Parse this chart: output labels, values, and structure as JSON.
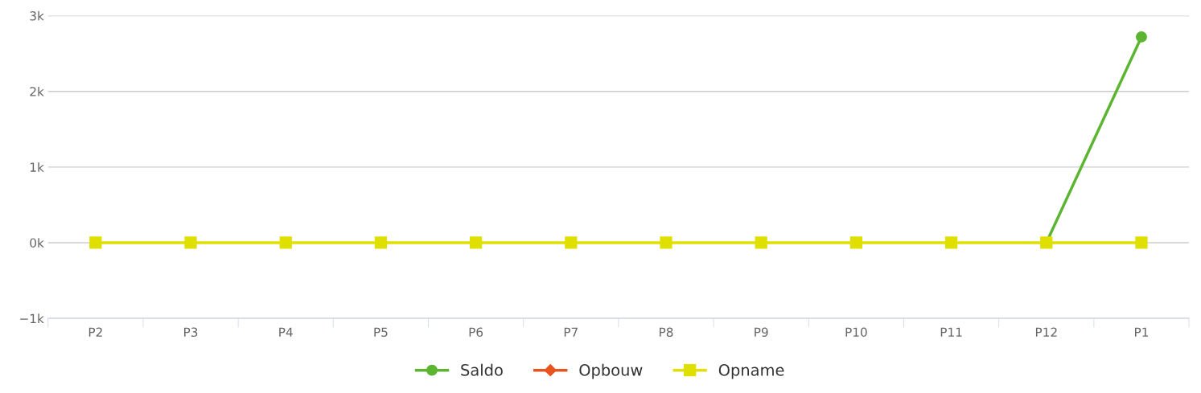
{
  "chart_data": {
    "type": "line",
    "categories": [
      "P2",
      "P3",
      "P4",
      "P5",
      "P6",
      "P7",
      "P8",
      "P9",
      "P10",
      "P11",
      "P12",
      "P1"
    ],
    "series": [
      {
        "name": "Saldo",
        "color": "#5bb531",
        "marker": "circle",
        "values": [
          null,
          null,
          null,
          null,
          null,
          null,
          null,
          null,
          null,
          null,
          0,
          2720
        ]
      },
      {
        "name": "Opbouw",
        "color": "#e8531e",
        "marker": "diamond",
        "values": [
          null,
          null,
          null,
          null,
          null,
          null,
          null,
          null,
          null,
          null,
          null,
          null
        ]
      },
      {
        "name": "Opname",
        "color": "#e0e000",
        "marker": "square",
        "values": [
          0,
          0,
          0,
          0,
          0,
          0,
          0,
          0,
          0,
          0,
          0,
          0
        ]
      }
    ],
    "ylim": [
      -1000,
      3000
    ],
    "yticks": [
      {
        "value": -1000,
        "label": "−1k"
      },
      {
        "value": 0,
        "label": "0k"
      },
      {
        "value": 1000,
        "label": "1k"
      },
      {
        "value": 2000,
        "label": "2k"
      },
      {
        "value": 3000,
        "label": "3k"
      }
    ],
    "grid": "y",
    "legend": "bottom",
    "line_style": "solid"
  }
}
